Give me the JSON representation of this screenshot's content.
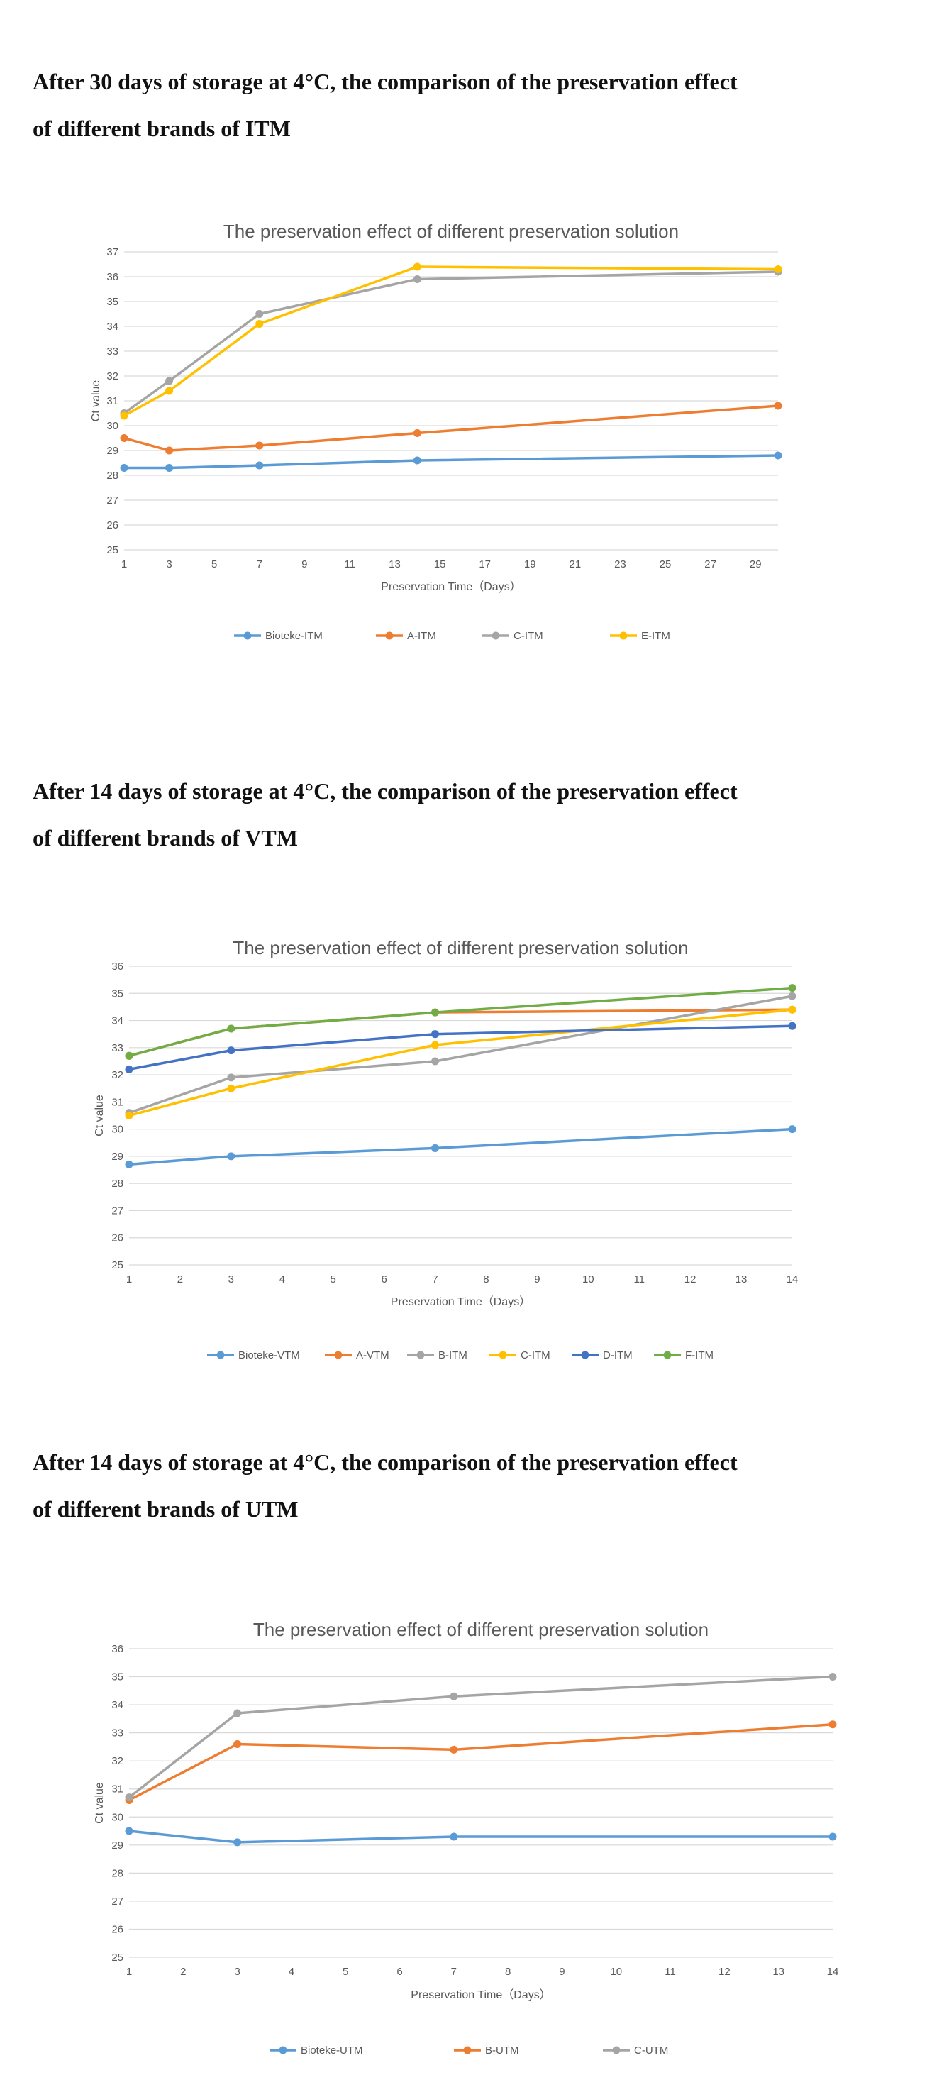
{
  "sections": [
    {
      "title_line1": "After 30 days of storage at 4°C, the comparison of the preservation effect",
      "title_line2": "of different brands of ITM"
    },
    {
      "title_line1": "After 14 days of storage at 4°C, the comparison of the preservation effect",
      "title_line2": "of different brands of VTM"
    },
    {
      "title_line1": "After 14 days of storage at 4°C, the comparison of the preservation effect",
      "title_line2": "of different brands of UTM"
    }
  ],
  "chart_data": [
    {
      "type": "line",
      "title": "The preservation effect of different preservation solution",
      "xlabel": "Preservation Time（Days）",
      "ylabel": "Ct value",
      "xlim": [
        1,
        30
      ],
      "xticks": [
        1,
        3,
        5,
        7,
        9,
        11,
        13,
        15,
        17,
        19,
        21,
        23,
        25,
        27,
        29
      ],
      "ylim": [
        25,
        37
      ],
      "grid": true,
      "legend_position": "bottom",
      "series": [
        {
          "name": "Bioteke-ITM",
          "color": "#5B9BD5",
          "x": [
            1,
            3,
            7,
            14,
            30
          ],
          "y": [
            28.3,
            28.3,
            28.4,
            28.6,
            28.8
          ]
        },
        {
          "name": "A-ITM",
          "color": "#ED7D31",
          "x": [
            1,
            3,
            7,
            14,
            30
          ],
          "y": [
            29.5,
            29.0,
            29.2,
            29.7,
            30.8
          ]
        },
        {
          "name": "C-ITM",
          "color": "#A5A5A5",
          "x": [
            1,
            3,
            7,
            14,
            30
          ],
          "y": [
            30.5,
            31.8,
            34.5,
            35.9,
            36.2
          ]
        },
        {
          "name": "E-ITM",
          "color": "#FFC000",
          "x": [
            1,
            3,
            7,
            14,
            30
          ],
          "y": [
            30.4,
            31.4,
            34.1,
            36.4,
            36.3
          ]
        }
      ]
    },
    {
      "type": "line",
      "title": "The preservation effect of different preservation solution",
      "xlabel": "Preservation Time（Days）",
      "ylabel": "Ct value",
      "xlim": [
        1,
        14
      ],
      "xticks": [
        1,
        2,
        3,
        4,
        5,
        6,
        7,
        8,
        9,
        10,
        11,
        12,
        13,
        14
      ],
      "ylim": [
        25,
        36
      ],
      "grid": true,
      "legend_position": "bottom",
      "series": [
        {
          "name": "Bioteke-VTM",
          "color": "#5B9BD5",
          "x": [
            1,
            3,
            7,
            14
          ],
          "y": [
            28.7,
            29.0,
            29.3,
            30.0
          ]
        },
        {
          "name": "A-VTM",
          "color": "#ED7D31",
          "x": [
            1,
            3,
            7,
            14
          ],
          "y": [
            32.7,
            33.7,
            34.3,
            34.4
          ]
        },
        {
          "name": "B-ITM",
          "color": "#A5A5A5",
          "x": [
            1,
            3,
            7,
            14
          ],
          "y": [
            30.6,
            31.9,
            32.5,
            34.9
          ]
        },
        {
          "name": "C-ITM",
          "color": "#FFC000",
          "x": [
            1,
            3,
            7,
            14
          ],
          "y": [
            30.5,
            31.5,
            33.1,
            34.4
          ]
        },
        {
          "name": "D-ITM",
          "color": "#4472C4",
          "x": [
            1,
            3,
            7,
            14
          ],
          "y": [
            32.2,
            32.9,
            33.5,
            33.8
          ]
        },
        {
          "name": "F-ITM",
          "color": "#70AD47",
          "x": [
            1,
            3,
            7,
            14
          ],
          "y": [
            32.7,
            33.7,
            34.3,
            35.2
          ]
        }
      ]
    },
    {
      "type": "line",
      "title": "The preservation effect of different preservation solution",
      "xlabel": "Preservation Time（Days）",
      "ylabel": "Ct value",
      "xlim": [
        1,
        14
      ],
      "xticks": [
        1,
        2,
        3,
        4,
        5,
        6,
        7,
        8,
        9,
        10,
        11,
        12,
        13,
        14
      ],
      "ylim": [
        25,
        36
      ],
      "grid": true,
      "legend_position": "bottom",
      "series": [
        {
          "name": "Bioteke-UTM",
          "color": "#5B9BD5",
          "x": [
            1,
            3,
            7,
            14
          ],
          "y": [
            29.5,
            29.1,
            29.3,
            29.3
          ]
        },
        {
          "name": "B-UTM",
          "color": "#ED7D31",
          "x": [
            1,
            3,
            7,
            14
          ],
          "y": [
            30.6,
            32.6,
            32.4,
            33.3
          ]
        },
        {
          "name": "C-UTM",
          "color": "#A5A5A5",
          "x": [
            1,
            3,
            7,
            14
          ],
          "y": [
            30.7,
            33.7,
            34.3,
            35.0
          ]
        }
      ]
    }
  ]
}
